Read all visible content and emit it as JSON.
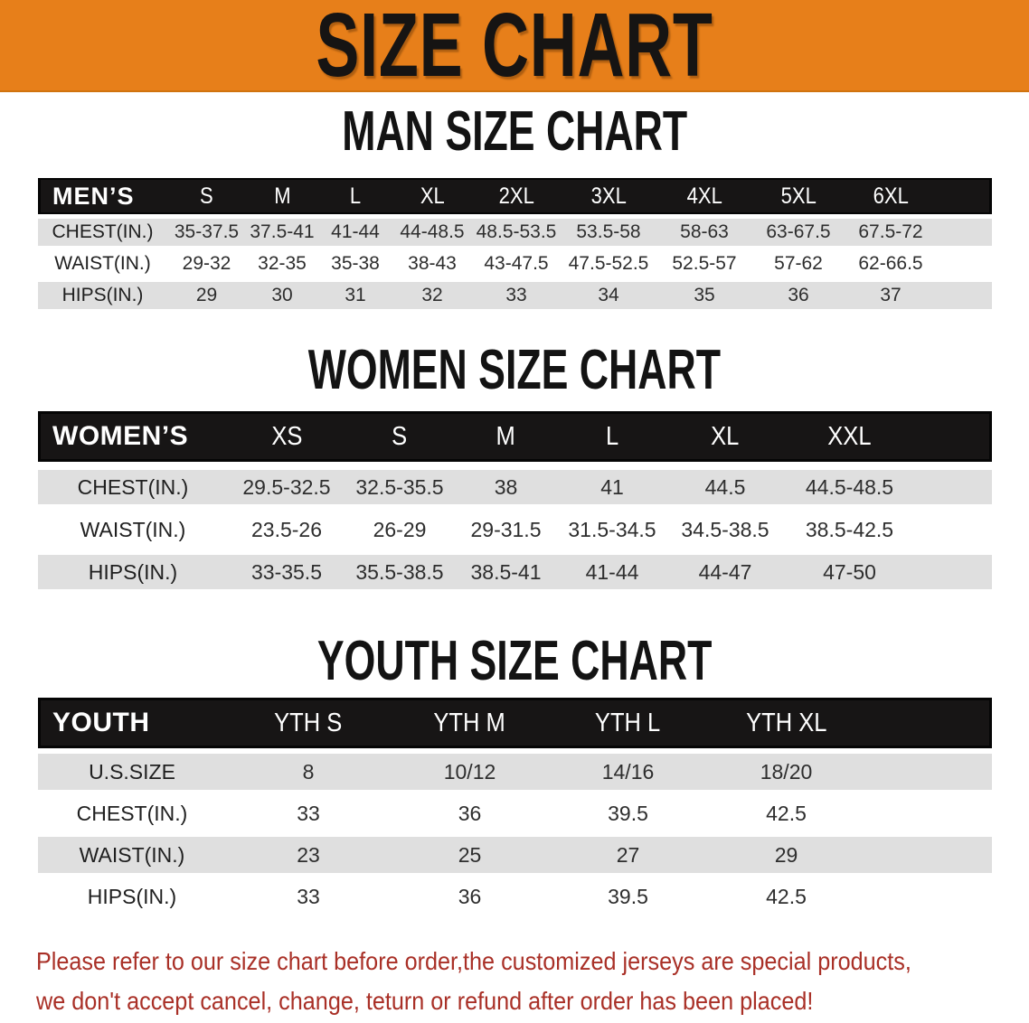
{
  "banner": {
    "title": "SIZE CHART"
  },
  "colors": {
    "banner_orange": "#E77F1A",
    "header_bar_black": "#171515",
    "row_gray": "#DFDFDF",
    "disclaimer_red": "#A93027"
  },
  "sections": [
    {
      "heading": "MAN SIZE CHART",
      "table": {
        "label": "MEN’S",
        "columns": [
          "S",
          "M",
          "L",
          "XL",
          "2XL",
          "3XL",
          "4XL",
          "5XL",
          "6XL"
        ],
        "rows": [
          {
            "label": "CHEST(IN.)",
            "values": [
              "35-37.5",
              "37.5-41",
              "41-44",
              "44-48.5",
              "48.5-53.5",
              "53.5-58",
              "58-63",
              "63-67.5",
              "67.5-72"
            ]
          },
          {
            "label": "WAIST(IN.)",
            "values": [
              "29-32",
              "32-35",
              "35-38",
              "38-43",
              "43-47.5",
              "47.5-52.5",
              "52.5-57",
              "57-62",
              "62-66.5"
            ]
          },
          {
            "label": "HIPS(IN.)",
            "values": [
              "29",
              "30",
              "31",
              "32",
              "33",
              "34",
              "35",
              "36",
              "37"
            ]
          }
        ]
      }
    },
    {
      "heading": "WOMEN SIZE CHART",
      "table": {
        "label": "WOMEN’S",
        "columns": [
          "XS",
          "S",
          "M",
          "L",
          "XL",
          "XXL"
        ],
        "rows": [
          {
            "label": "CHEST(IN.)",
            "values": [
              "29.5-32.5",
              "32.5-35.5",
              "38",
              "41",
              "44.5",
              "44.5-48.5"
            ]
          },
          {
            "label": "WAIST(IN.)",
            "values": [
              "23.5-26",
              "26-29",
              "29-31.5",
              "31.5-34.5",
              "34.5-38.5",
              "38.5-42.5"
            ]
          },
          {
            "label": "HIPS(IN.)",
            "values": [
              "33-35.5",
              "35.5-38.5",
              "38.5-41",
              "41-44",
              "44-47",
              "47-50"
            ]
          }
        ]
      }
    },
    {
      "heading": "YOUTH SIZE CHART",
      "table": {
        "label": "YOUTH",
        "columns": [
          "YTH S",
          "YTH M",
          "YTH L",
          "YTH XL"
        ],
        "rows": [
          {
            "label": "U.S.SIZE",
            "values": [
              "8",
              "10/12",
              "14/16",
              "18/20"
            ]
          },
          {
            "label": "CHEST(IN.)",
            "values": [
              "33",
              "36",
              "39.5",
              "42.5"
            ]
          },
          {
            "label": "WAIST(IN.)",
            "values": [
              "23",
              "25",
              "27",
              "29"
            ]
          },
          {
            "label": "HIPS(IN.)",
            "values": [
              "33",
              "36",
              "39.5",
              "42.5"
            ]
          }
        ]
      }
    }
  ],
  "disclaimer": {
    "line1": "Please refer to our size chart before order,the customized jerseys are special products,",
    "line2": "we don't accept cancel, change, teturn or refund after order has been placed!"
  }
}
